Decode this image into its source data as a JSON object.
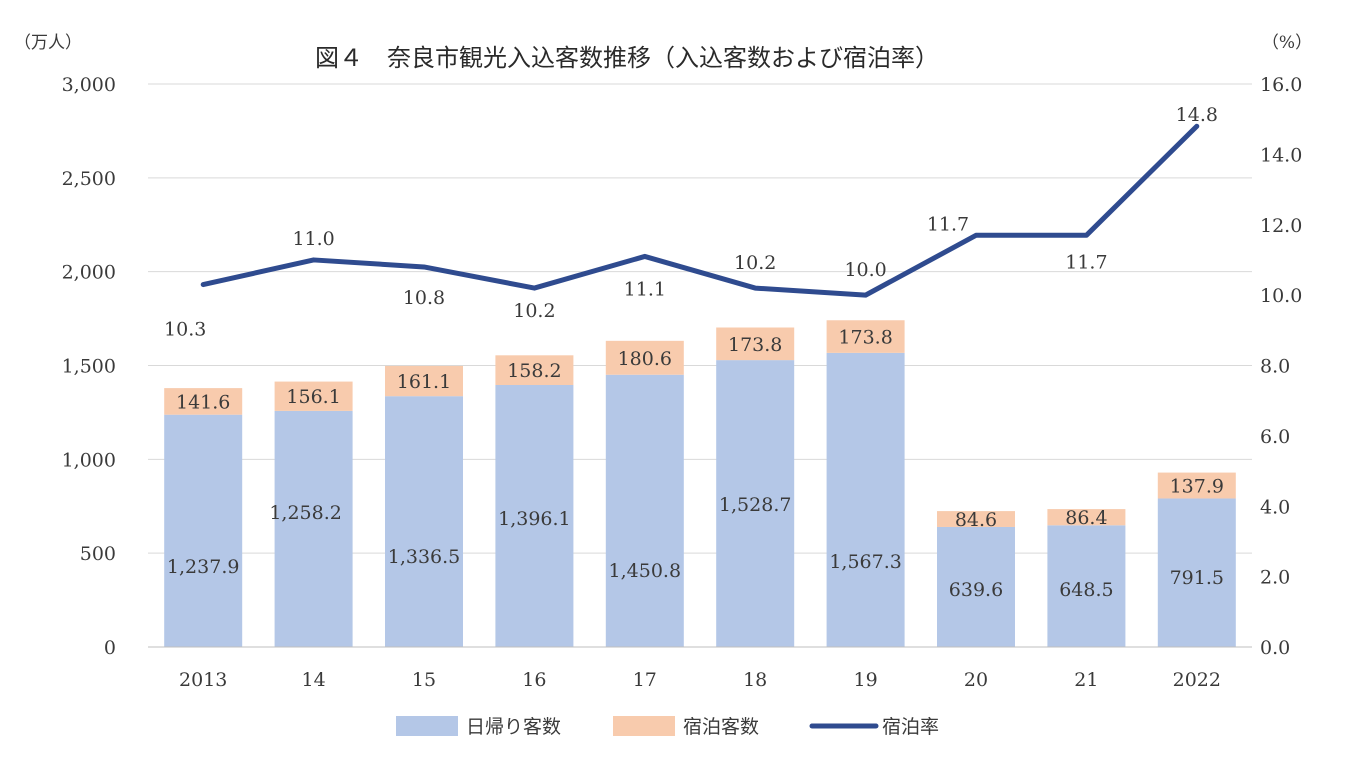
{
  "chart_data": {
    "type": "bar",
    "title": "図４　奈良市観光入込客数推移（入込客数および宿泊率）",
    "left_unit": "（万人）",
    "right_unit": "（%）",
    "categories": [
      "2013",
      "14",
      "15",
      "16",
      "17",
      "18",
      "19",
      "20",
      "21",
      "2022"
    ],
    "series": [
      {
        "name": "日帰り客数",
        "type": "bar",
        "stacked": true,
        "axis": "left",
        "color": "#b4c7e7",
        "values": [
          1237.9,
          1258.2,
          1336.5,
          1396.1,
          1450.8,
          1528.7,
          1567.3,
          639.6,
          648.5,
          791.5
        ],
        "labels": [
          "1,237.9",
          "1,258.2",
          "1,336.5",
          "1,396.1",
          "1,450.8",
          "1,528.7",
          "1,567.3",
          "639.6",
          "648.5",
          "791.5"
        ]
      },
      {
        "name": "宿泊客数",
        "type": "bar",
        "stacked": true,
        "axis": "left",
        "color": "#f8cbad",
        "values": [
          141.6,
          156.1,
          161.1,
          158.2,
          180.6,
          173.8,
          173.8,
          84.6,
          86.4,
          137.9
        ],
        "labels": [
          "141.6",
          "156.1",
          "161.1",
          "158.2",
          "180.6",
          "173.8",
          "173.8",
          "84.6",
          "86.4",
          "137.9"
        ]
      },
      {
        "name": "宿泊率",
        "type": "line",
        "axis": "right",
        "color": "#2f4b8f",
        "values": [
          10.3,
          11.0,
          10.8,
          10.2,
          11.1,
          10.2,
          10.0,
          11.7,
          11.7,
          14.8
        ],
        "labels": [
          "10.3",
          "11.0",
          "10.8",
          "10.2",
          "11.1",
          "10.2",
          "10.0",
          "11.7",
          "11.7",
          "14.8"
        ]
      }
    ],
    "y_left": {
      "min": 0,
      "max": 3000,
      "ticks": [
        "0",
        "500",
        "1,000",
        "1,500",
        "2,000",
        "2,500",
        "3,000"
      ]
    },
    "y_right": {
      "min": 0,
      "max": 16,
      "ticks": [
        "0.0",
        "2.0",
        "4.0",
        "6.0",
        "8.0",
        "10.0",
        "12.0",
        "14.0",
        "16.0"
      ]
    },
    "grid": true,
    "legend_position": "bottom"
  }
}
